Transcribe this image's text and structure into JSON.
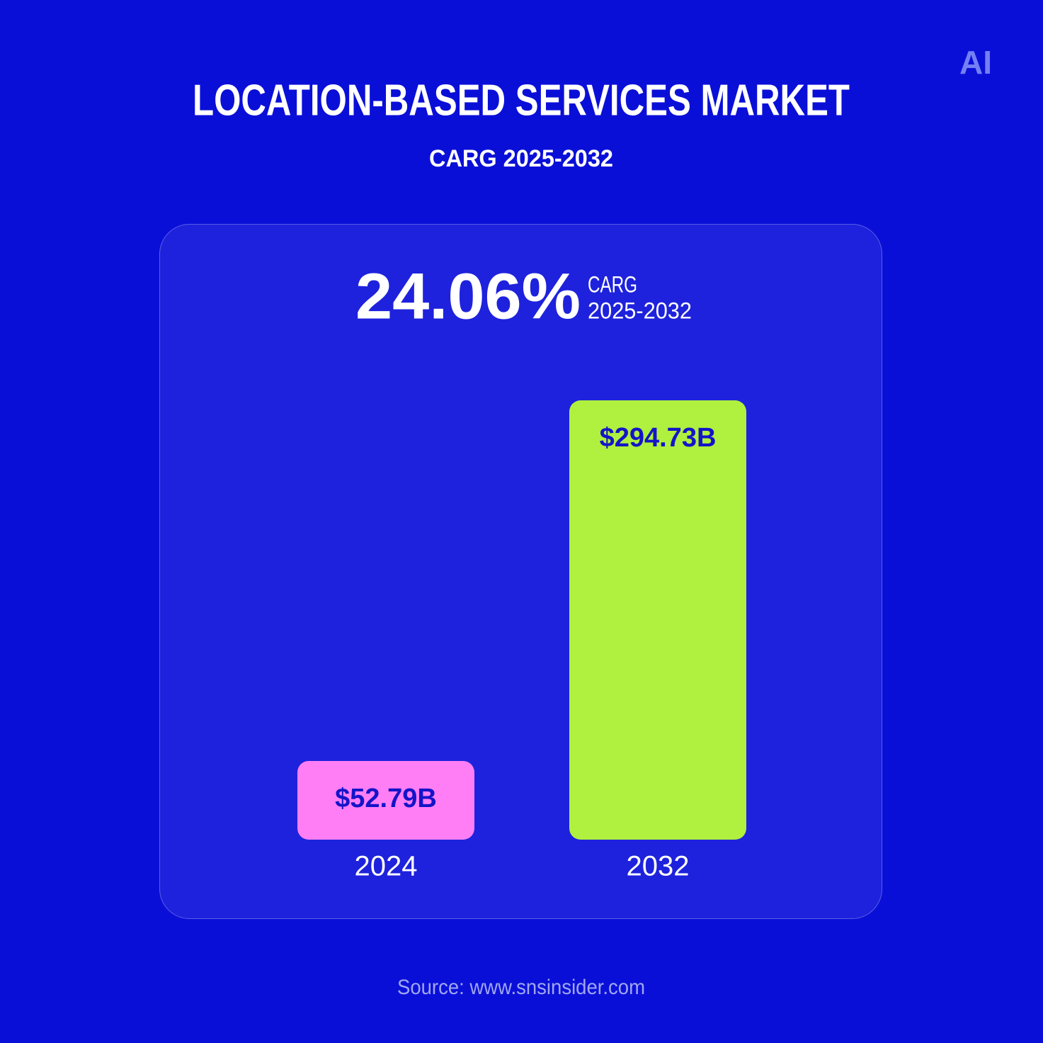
{
  "chart_data": {
    "type": "bar",
    "title": "LOCATION-BASED SERVICES MARKET",
    "subtitle": "CARG 2025-2032",
    "headline": "24.06%",
    "headline_note": [
      "CARG",
      "2025-2032"
    ],
    "categories": [
      "2024",
      "2032"
    ],
    "values": [
      52.79,
      294.73
    ],
    "value_labels": [
      "$52.79B",
      "$294.73B"
    ],
    "colors": [
      "#ff7ef5",
      "#b0f03e"
    ],
    "source": "Source: www.snsinsider.com",
    "logo": "AI"
  }
}
